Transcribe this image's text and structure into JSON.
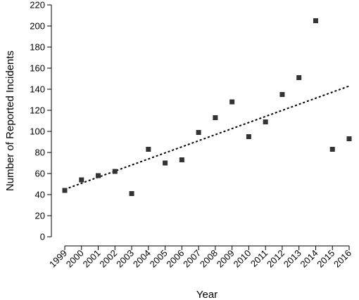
{
  "chart_data": {
    "type": "scatter",
    "title": "",
    "xlabel": "Year",
    "ylabel": "Number of Reported Incidents",
    "xlim": [
      1999,
      2016
    ],
    "ylim": [
      0,
      220
    ],
    "yticks": [
      0,
      20,
      40,
      60,
      80,
      100,
      120,
      140,
      160,
      180,
      200,
      220
    ],
    "xticks": [
      "1999",
      "2000",
      "2001",
      "2002",
      "2003",
      "2004",
      "2005",
      "2006",
      "2007",
      "2008",
      "2009",
      "2010",
      "2011",
      "2012",
      "2013",
      "2014",
      "2015",
      "2016"
    ],
    "grid": false,
    "marker": "square",
    "marker_color": "#333333",
    "series": [
      {
        "x": [
          1999,
          2000,
          2001,
          2002,
          2003,
          2004,
          2005,
          2006,
          2007,
          2008,
          2009,
          2010,
          2011,
          2012,
          2013,
          2014,
          2015,
          2016
        ],
        "y": [
          44,
          54,
          58,
          62,
          41,
          83,
          70,
          73,
          99,
          113,
          128,
          95,
          109,
          135,
          151,
          205,
          83,
          93
        ]
      }
    ],
    "trendline": {
      "style": "dotted",
      "color": "#000000",
      "x": [
        1999,
        2016
      ],
      "y": [
        45,
        143
      ]
    }
  }
}
